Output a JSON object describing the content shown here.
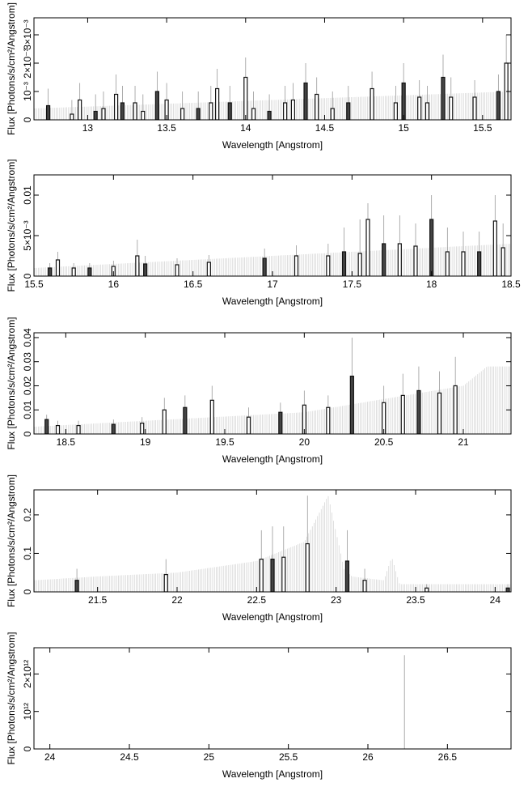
{
  "chart_data": [
    {
      "type": "bar",
      "xlabel": "Wavelength [Angstrom]",
      "ylabel": "Flux [Photons/s/cm²/Angstrom]",
      "xlim": [
        12.66,
        15.68
      ],
      "ylim": [
        0,
        0.0036
      ],
      "xticks": [
        {
          "v": 13,
          "label": "13"
        },
        {
          "v": 13.5,
          "label": "13.5"
        },
        {
          "v": 14,
          "label": "14"
        },
        {
          "v": 14.5,
          "label": "14.5"
        },
        {
          "v": 15,
          "label": "15"
        },
        {
          "v": 15.5,
          "label": "15.5"
        }
      ],
      "yticks": [
        {
          "v": 0,
          "label": "0"
        },
        {
          "v": 0.001,
          "label": "10⁻³"
        },
        {
          "v": 0.002,
          "label": "2×10⁻³"
        },
        {
          "v": 0.003,
          "label": "3×10⁻³"
        }
      ],
      "model_baseline": [
        [
          12.66,
          0.0004
        ],
        [
          15.68,
          0.001
        ]
      ],
      "bars": [
        [
          12.75,
          0.0005,
          0.0011
        ],
        [
          12.9,
          0.0002,
          0.0007
        ],
        [
          12.95,
          0.0007,
          0.0013
        ],
        [
          13.05,
          0.0003,
          0.0009
        ],
        [
          13.1,
          0.0004,
          0.001
        ],
        [
          13.18,
          0.0009,
          0.0016
        ],
        [
          13.22,
          0.0006,
          0.0012
        ],
        [
          13.3,
          0.0006,
          0.0012
        ],
        [
          13.35,
          0.0003,
          0.0009
        ],
        [
          13.44,
          0.001,
          0.0017
        ],
        [
          13.5,
          0.0007,
          0.0013
        ],
        [
          13.6,
          0.0004,
          0.001
        ],
        [
          13.7,
          0.0004,
          0.001
        ],
        [
          13.78,
          0.0006,
          0.0012
        ],
        [
          13.82,
          0.0011,
          0.0018
        ],
        [
          13.9,
          0.0006,
          0.0012
        ],
        [
          14.0,
          0.0015,
          0.0022
        ],
        [
          14.05,
          0.0004,
          0.001
        ],
        [
          14.15,
          0.0003,
          0.0009
        ],
        [
          14.25,
          0.0006,
          0.0012
        ],
        [
          14.3,
          0.0007,
          0.0013
        ],
        [
          14.38,
          0.0013,
          0.002
        ],
        [
          14.45,
          0.0009,
          0.0015
        ],
        [
          14.55,
          0.0004,
          0.001
        ],
        [
          14.65,
          0.0006,
          0.0012
        ],
        [
          14.8,
          0.0011,
          0.0017
        ],
        [
          14.95,
          0.0006,
          0.0012
        ],
        [
          15.0,
          0.0013,
          0.002
        ],
        [
          15.1,
          0.0008,
          0.0014
        ],
        [
          15.15,
          0.0006,
          0.0012
        ],
        [
          15.25,
          0.0015,
          0.0023
        ],
        [
          15.3,
          0.0008,
          0.0015
        ],
        [
          15.45,
          0.0008,
          0.0014
        ],
        [
          15.6,
          0.001,
          0.0016
        ],
        [
          15.65,
          0.002,
          0.003
        ]
      ]
    },
    {
      "type": "bar",
      "xlabel": "Wavelength [Angstrom]",
      "ylabel": "Flux [Photons/s/cm²/Angstrom]",
      "xlim": [
        15.5,
        18.5
      ],
      "ylim": [
        0,
        0.0125
      ],
      "xticks": [
        {
          "v": 15.5,
          "label": "15.5"
        },
        {
          "v": 16,
          "label": "16"
        },
        {
          "v": 16.5,
          "label": "16.5"
        },
        {
          "v": 17,
          "label": "17"
        },
        {
          "v": 17.5,
          "label": "17.5"
        },
        {
          "v": 18,
          "label": "18"
        },
        {
          "v": 18.5,
          "label": "18.5"
        }
      ],
      "yticks": [
        {
          "v": 0,
          "label": "0"
        },
        {
          "v": 0.005,
          "label": "5×10⁻³"
        },
        {
          "v": 0.01,
          "label": "0.01"
        }
      ],
      "model_baseline": [
        [
          15.5,
          0.001
        ],
        [
          18.5,
          0.004
        ]
      ],
      "bars": [
        [
          15.6,
          0.001,
          0.0016
        ],
        [
          15.65,
          0.002,
          0.003
        ],
        [
          15.75,
          0.001,
          0.0016
        ],
        [
          15.85,
          0.001,
          0.0016
        ],
        [
          16.0,
          0.0012,
          0.0019
        ],
        [
          16.15,
          0.0025,
          0.0045
        ],
        [
          16.2,
          0.0015,
          0.0025
        ],
        [
          16.4,
          0.0014,
          0.0022
        ],
        [
          16.6,
          0.0017,
          0.0026
        ],
        [
          16.95,
          0.0022,
          0.0034
        ],
        [
          17.15,
          0.0025,
          0.0038
        ],
        [
          17.35,
          0.0025,
          0.004
        ],
        [
          17.45,
          0.003,
          0.006
        ],
        [
          17.55,
          0.0028,
          0.007
        ],
        [
          17.6,
          0.007,
          0.009
        ],
        [
          17.7,
          0.004,
          0.0075
        ],
        [
          17.8,
          0.004,
          0.0075
        ],
        [
          17.9,
          0.0037,
          0.0065
        ],
        [
          18.0,
          0.007,
          0.01
        ],
        [
          18.1,
          0.003,
          0.006
        ],
        [
          18.2,
          0.003,
          0.0055
        ],
        [
          18.3,
          0.003,
          0.0055
        ],
        [
          18.4,
          0.0068,
          0.01
        ],
        [
          18.45,
          0.0035,
          0.0065
        ]
      ]
    },
    {
      "type": "bar",
      "xlabel": "Wavelength [Angstrom]",
      "ylabel": "Flux [Photons/s/cm²/Angstrom]",
      "xlim": [
        18.3,
        21.3
      ],
      "ylim": [
        0,
        0.042
      ],
      "xticks": [
        {
          "v": 18.5,
          "label": "18.5"
        },
        {
          "v": 19,
          "label": "19"
        },
        {
          "v": 19.5,
          "label": "19.5"
        },
        {
          "v": 20,
          "label": "20"
        },
        {
          "v": 20.5,
          "label": "20.5"
        },
        {
          "v": 21,
          "label": "21"
        }
      ],
      "yticks": [
        {
          "v": 0,
          "label": "0"
        },
        {
          "v": 0.01,
          "label": "0.01"
        },
        {
          "v": 0.02,
          "label": "0.02"
        },
        {
          "v": 0.03,
          "label": "0.03"
        },
        {
          "v": 0.04,
          "label": "0.04"
        }
      ],
      "model_baseline": [
        [
          18.3,
          0.003
        ],
        [
          20.0,
          0.009
        ],
        [
          21.0,
          0.02
        ],
        [
          21.15,
          0.028
        ],
        [
          21.3,
          0.028
        ]
      ],
      "bars": [
        [
          18.38,
          0.006,
          0.008
        ],
        [
          18.45,
          0.0035,
          0.0055
        ],
        [
          18.58,
          0.0035,
          0.0055
        ],
        [
          18.8,
          0.004,
          0.006
        ],
        [
          18.98,
          0.0045,
          0.007
        ],
        [
          19.12,
          0.01,
          0.015
        ],
        [
          19.25,
          0.011,
          0.016
        ],
        [
          19.42,
          0.014,
          0.02
        ],
        [
          19.65,
          0.007,
          0.011
        ],
        [
          19.85,
          0.009,
          0.013
        ],
        [
          20.0,
          0.012,
          0.018
        ],
        [
          20.15,
          0.011,
          0.016
        ],
        [
          20.3,
          0.024,
          0.04
        ],
        [
          20.5,
          0.013,
          0.02
        ],
        [
          20.62,
          0.016,
          0.025
        ],
        [
          20.72,
          0.018,
          0.028
        ],
        [
          20.85,
          0.017,
          0.026
        ],
        [
          20.95,
          0.02,
          0.032
        ]
      ]
    },
    {
      "type": "bar",
      "xlabel": "Wavelength [Angstrom]",
      "ylabel": "Flux [Photons/s/cm²/Angstrom]",
      "xlim": [
        21.1,
        24.1
      ],
      "ylim": [
        0,
        0.265
      ],
      "xticks": [
        {
          "v": 21.5,
          "label": "21.5"
        },
        {
          "v": 22,
          "label": "22"
        },
        {
          "v": 22.5,
          "label": "22.5"
        },
        {
          "v": 23,
          "label": "23"
        },
        {
          "v": 23.5,
          "label": "23.5"
        },
        {
          "v": 24,
          "label": "24"
        }
      ],
      "yticks": [
        {
          "v": 0,
          "label": "0"
        },
        {
          "v": 0.1,
          "label": "0.1"
        },
        {
          "v": 0.2,
          "label": "0.2"
        }
      ],
      "model_baseline": [
        [
          21.1,
          0.03
        ],
        [
          21.5,
          0.04
        ],
        [
          22.0,
          0.05
        ],
        [
          22.5,
          0.08
        ],
        [
          22.8,
          0.13
        ],
        [
          22.95,
          0.25
        ],
        [
          23.05,
          0.06
        ],
        [
          23.1,
          0.04
        ],
        [
          23.3,
          0.03
        ],
        [
          23.35,
          0.09
        ],
        [
          23.4,
          0.02
        ],
        [
          24.1,
          0.02
        ]
      ],
      "bars": [
        [
          21.37,
          0.03,
          0.06
        ],
        [
          21.93,
          0.045,
          0.085
        ],
        [
          22.53,
          0.085,
          0.16
        ],
        [
          22.6,
          0.085,
          0.17
        ],
        [
          22.67,
          0.09,
          0.17
        ],
        [
          22.82,
          0.125,
          0.25
        ],
        [
          23.07,
          0.08,
          0.16
        ],
        [
          23.18,
          0.03,
          0.06
        ],
        [
          23.57,
          0.01,
          0.02
        ],
        [
          24.08,
          0.01,
          0.02
        ]
      ]
    },
    {
      "type": "bar",
      "xlabel": "Wavelength [Angstrom]",
      "ylabel": "Flux [Photons/s/cm²/Angstrom]",
      "xlim": [
        23.9,
        26.9
      ],
      "ylim": [
        0,
        2700000000000.0
      ],
      "xticks": [
        {
          "v": 24,
          "label": "24"
        },
        {
          "v": 24.5,
          "label": "24.5"
        },
        {
          "v": 25,
          "label": "25"
        },
        {
          "v": 25.5,
          "label": "25.5"
        },
        {
          "v": 26,
          "label": "26"
        },
        {
          "v": 26.5,
          "label": "26.5"
        }
      ],
      "yticks": [
        {
          "v": 0,
          "label": "0"
        },
        {
          "v": 1000000000000.0,
          "label": "10¹²"
        },
        {
          "v": 2000000000000.0,
          "label": "2×10¹²"
        }
      ],
      "model_baseline": [],
      "bars": [],
      "spikes": [
        [
          26.23,
          2500000000000.0
        ]
      ]
    }
  ]
}
